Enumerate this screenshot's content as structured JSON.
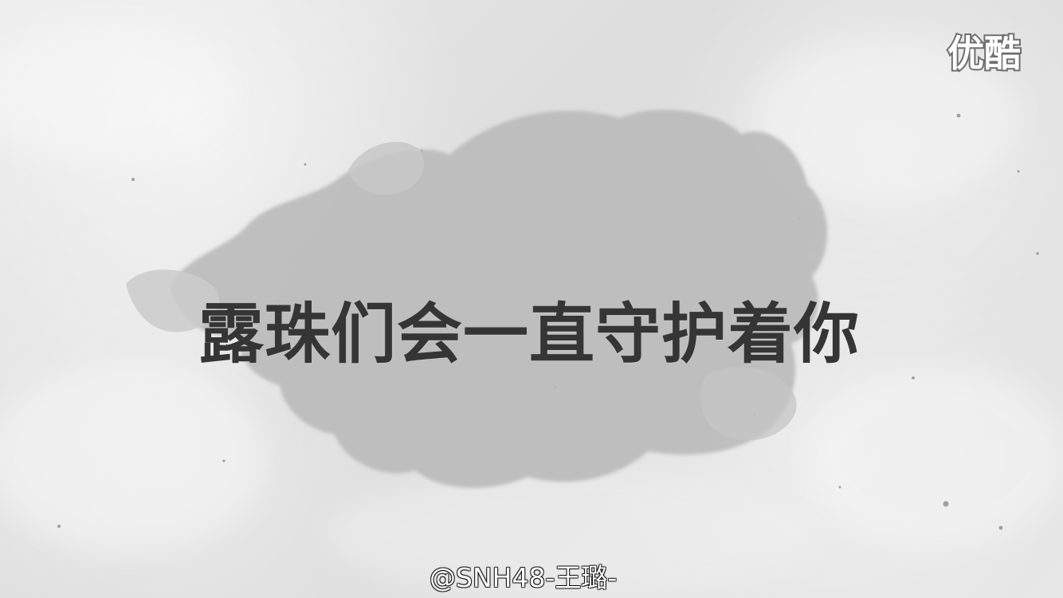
{
  "scene": {
    "platform_logo_text": "优酷",
    "caption": "露珠们会一直守护着你",
    "watermark": "@SNH48-王璐-"
  },
  "colors": {
    "paper_light": "#ececec",
    "paper_mid": "#dddddd",
    "ink_stain": "#b9b9b9",
    "caption_text": "#353535",
    "watermark_text": "#ffffff"
  },
  "icons": {
    "platform_logo": "youku-logo"
  }
}
